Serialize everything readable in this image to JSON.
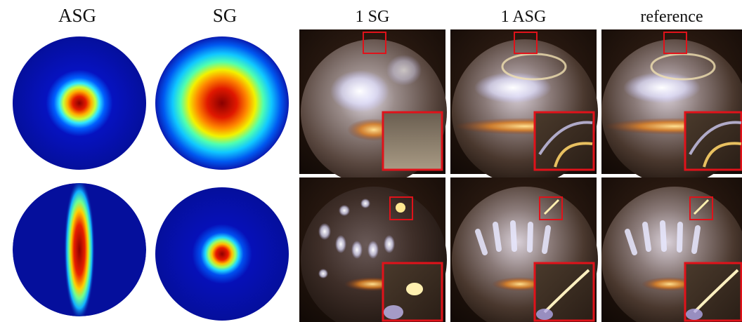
{
  "figure": {
    "column_labels": [
      "ASG",
      "SG",
      "1 SG",
      "1 ASG",
      "reference"
    ]
  },
  "colors": {
    "jet_blue": "#0a14a8",
    "jet_red": "#a00000",
    "inset_border": "#e0121a"
  }
}
